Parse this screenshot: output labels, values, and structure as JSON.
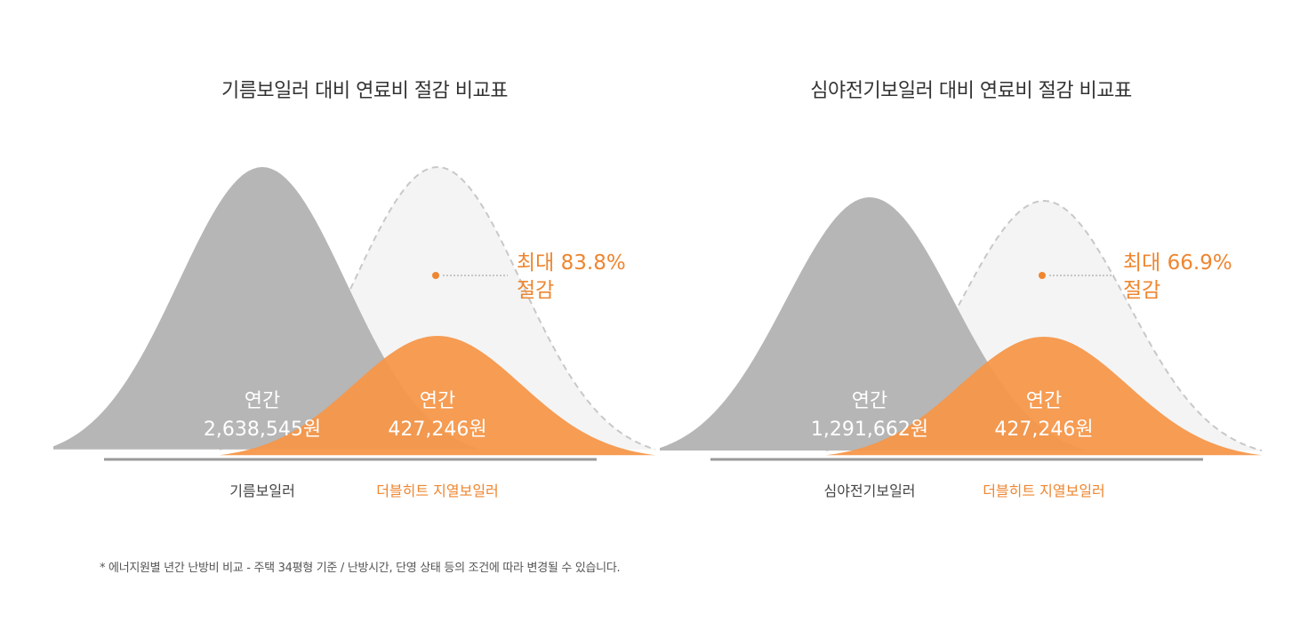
{
  "colors": {
    "gray": "#b6b6b6",
    "orange": "#f6974a",
    "orange_text": "#ee8630",
    "ghost_fill": "#f4f4f4",
    "ghost_stroke": "#c8c8c8",
    "baseline": "#9a9a9a"
  },
  "footnote": "* 에너지원별 년간 난방비 비교 - 주택 34평형 기준 / 난방시간, 단영 상태 등의 조건에 따라 변경될 수 있습니다.",
  "chart_data": [
    {
      "type": "area",
      "title": "기름보일러 대비 연료비 절감 비교표",
      "series": [
        {
          "name": "기름보일러",
          "label_line1": "연간",
          "value_text": "2,638,545원",
          "value": 2638545
        },
        {
          "name": "더블히트 지열보일러",
          "label_line1": "연간",
          "value_text": "427,246원",
          "value": 427246
        }
      ],
      "annotation": {
        "line1": "최대 83.8%",
        "line2": "절감"
      }
    },
    {
      "type": "area",
      "title": "심야전기보일러 대비 연료비 절감 비교표",
      "series": [
        {
          "name": "심야전기보일러",
          "label_line1": "연간",
          "value_text": "1,291,662원",
          "value": 1291662
        },
        {
          "name": "더블히트 지열보일러",
          "label_line1": "연간",
          "value_text": "427,246원",
          "value": 427246
        }
      ],
      "annotation": {
        "line1": "최대 66.9%",
        "line2": "절감"
      }
    }
  ]
}
